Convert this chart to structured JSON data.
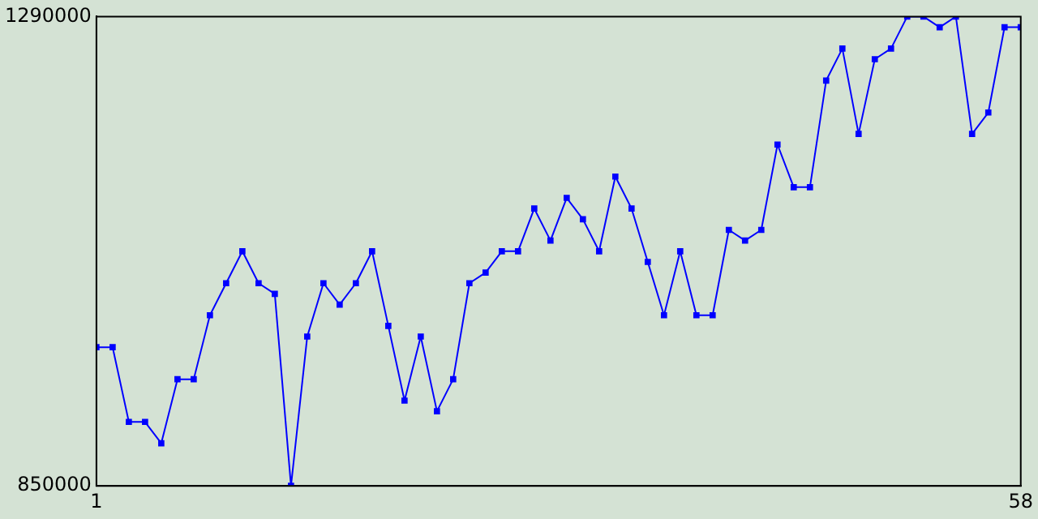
{
  "chart_data": {
    "type": "line",
    "x": [
      1,
      2,
      3,
      4,
      5,
      6,
      7,
      8,
      9,
      10,
      11,
      12,
      13,
      14,
      15,
      16,
      17,
      18,
      19,
      20,
      21,
      22,
      23,
      24,
      25,
      26,
      27,
      28,
      29,
      30,
      31,
      32,
      33,
      34,
      35,
      36,
      37,
      38,
      39,
      40,
      41,
      42,
      43,
      44,
      45,
      46,
      47,
      48,
      49,
      50,
      51,
      52,
      53,
      54,
      55,
      56,
      57,
      58
    ],
    "series": [
      {
        "color": "#0000ff",
        "values": [
          980000,
          980000,
          910000,
          910000,
          890000,
          950000,
          950000,
          1010000,
          1040000,
          1070000,
          1040000,
          1030000,
          850000,
          990000,
          1040000,
          1020000,
          1040000,
          1070000,
          1000000,
          930000,
          990000,
          920000,
          950000,
          1040000,
          1050000,
          1070000,
          1070000,
          1110000,
          1080000,
          1120000,
          1100000,
          1070000,
          1140000,
          1110000,
          1060000,
          1010000,
          1070000,
          1010000,
          1010000,
          1090000,
          1080000,
          1090000,
          1170000,
          1130000,
          1130000,
          1230000,
          1260000,
          1180000,
          1250000,
          1260000,
          1290000,
          1290000,
          1280000,
          1290000,
          1180000,
          1200000,
          1280000,
          1280000
        ]
      }
    ],
    "xlim": [
      1,
      58
    ],
    "xticks": [
      1,
      58
    ],
    "ylim": [
      850000,
      1290000
    ],
    "yticks": [
      850000,
      1290000
    ],
    "grid": false,
    "legend": false,
    "marker": "square",
    "line_style": "solid"
  }
}
